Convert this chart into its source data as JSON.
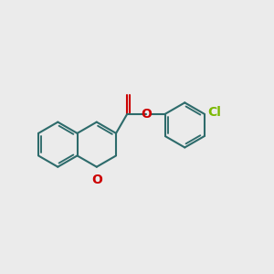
{
  "bg_color": "#ebebeb",
  "bond_color": "#2d6b6b",
  "oxygen_color": "#cc0000",
  "chlorine_color": "#7ab800",
  "bond_width": 1.5,
  "font_size_atom": 10,
  "fig_width": 3.0,
  "fig_height": 3.0,
  "dpi": 100,
  "xlim": [
    0,
    10
  ],
  "ylim": [
    1.5,
    8.5
  ]
}
